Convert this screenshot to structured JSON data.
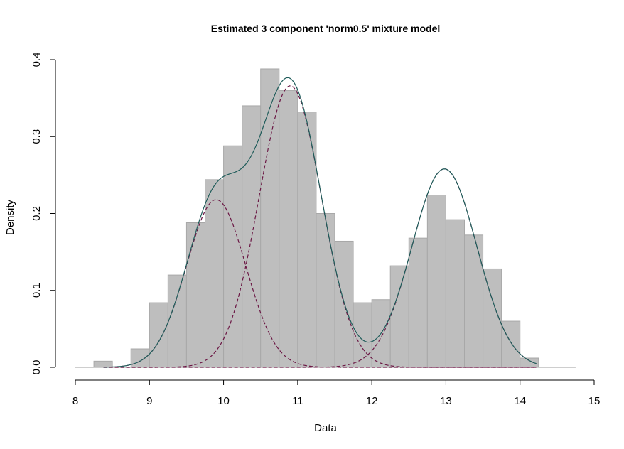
{
  "chart_data": {
    "type": "bar",
    "title": "Estimated 3 component 'norm0.5' mixture model",
    "xlabel": "Data",
    "ylabel": "Density",
    "xlim": [
      8,
      15
    ],
    "ylim": [
      0,
      0.4
    ],
    "x_ticks": [
      "8",
      "9",
      "10",
      "11",
      "12",
      "13",
      "14",
      "15"
    ],
    "y_ticks": [
      "0.0",
      "0.1",
      "0.2",
      "0.3",
      "0.4"
    ],
    "grid": false,
    "legend": "none",
    "histogram": {
      "name": "Data",
      "bin_width": 0.25,
      "bin_starts": [
        8.25,
        8.5,
        8.75,
        9.0,
        9.25,
        9.5,
        9.75,
        10.0,
        10.25,
        10.5,
        10.75,
        11.0,
        11.25,
        11.5,
        11.75,
        12.0,
        12.25,
        12.5,
        12.75,
        13.0,
        13.25,
        13.5,
        13.75,
        14.0
      ],
      "values": [
        0.008,
        0.0,
        0.024,
        0.084,
        0.12,
        0.188,
        0.244,
        0.288,
        0.34,
        0.388,
        0.36,
        0.332,
        0.2,
        0.164,
        0.084,
        0.088,
        0.132,
        0.168,
        0.224,
        0.192,
        0.172,
        0.128,
        0.06,
        0.012
      ],
      "fill_color": "#bebebe",
      "border_color": "#a8a8a8"
    },
    "baseline": {
      "from": 8.0,
      "to": 14.75,
      "color": "#9e9e9e"
    },
    "components": [
      {
        "mean": 9.9,
        "sd": 0.4,
        "weight": 0.218
      },
      {
        "mean": 10.9,
        "sd": 0.42,
        "weight": 0.366
      },
      {
        "mean": 12.98,
        "sd": 0.44,
        "weight": 0.258
      }
    ],
    "curve_range": [
      8.38,
      14.22
    ],
    "component_line_color": "#6b1744",
    "mixture_line_color": "#1f5c5a"
  }
}
